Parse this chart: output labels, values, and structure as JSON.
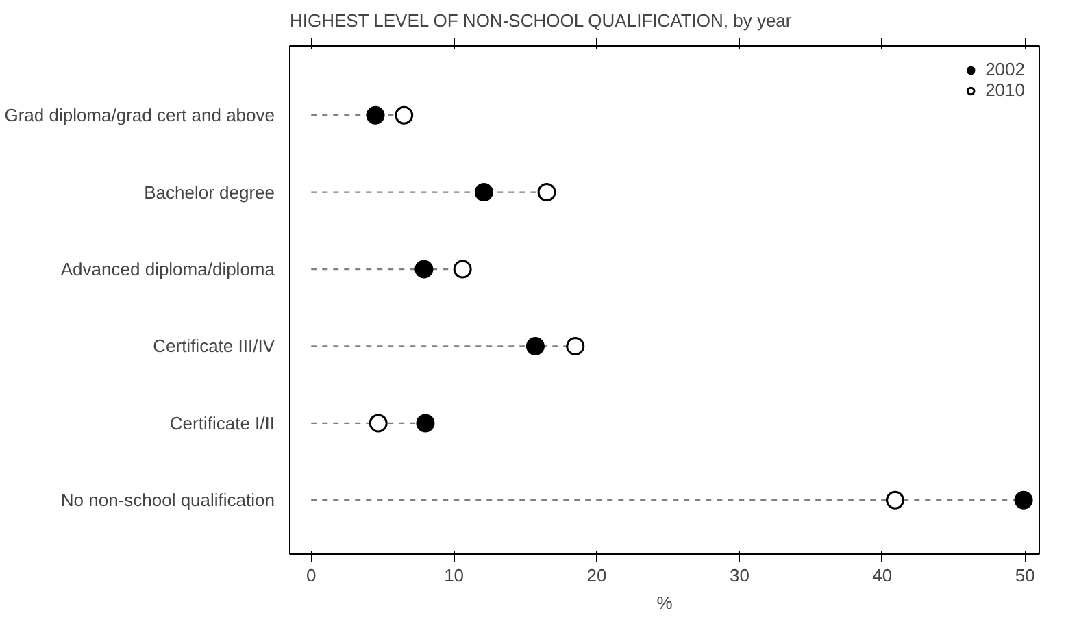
{
  "chart_data": {
    "type": "lollipop",
    "title": "HIGHEST LEVEL OF NON-SCHOOL QUALIFICATION, by year",
    "xlabel": "%",
    "categories": [
      "Grad diploma/grad cert and above",
      "Bachelor degree",
      "Advanced diploma/diploma",
      "Certificate III/IV",
      "Certificate I/II",
      "No non-school qualification"
    ],
    "orientation": "horizontal",
    "series": [
      {
        "name": "2002",
        "color": "#000000",
        "values": [
          4.5,
          12.1,
          7.9,
          15.7,
          8.0,
          49.9
        ]
      },
      {
        "name": "2010",
        "color": "#ffffff",
        "values": [
          6.5,
          16.5,
          10.6,
          18.5,
          4.7,
          40.9
        ]
      }
    ],
    "xlim": [
      -1.5,
      51
    ],
    "xticks": [
      0,
      10,
      20,
      30,
      40,
      50
    ],
    "line_style": "dashed",
    "marker": "circle",
    "legend": "top right",
    "grid": false
  }
}
